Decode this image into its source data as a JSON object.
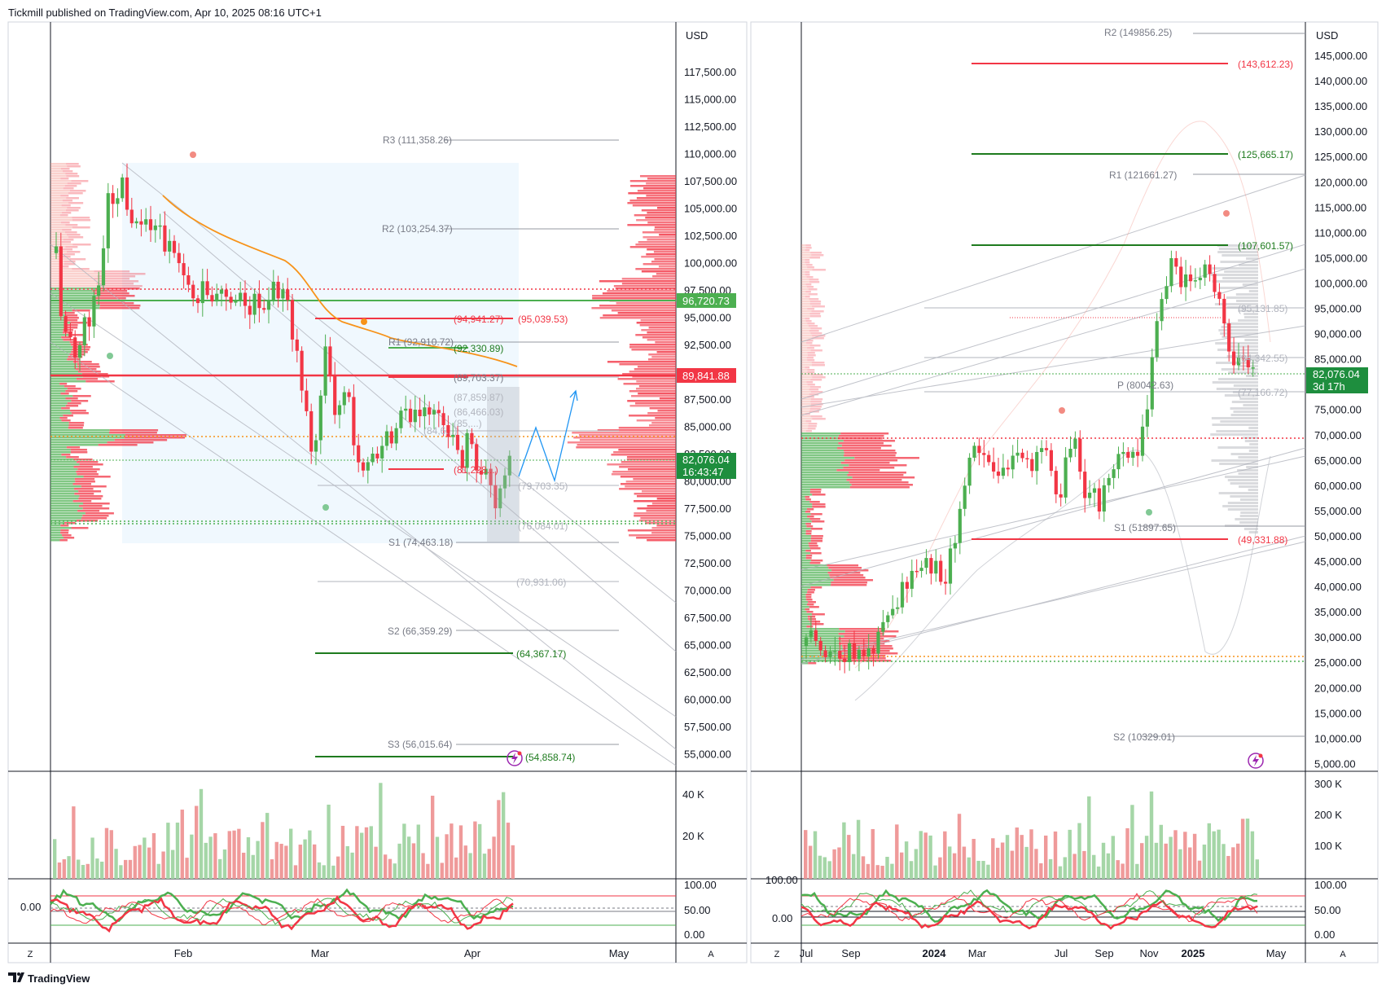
{
  "header": {
    "text": "Tickmill published on TradingView.com, Apr 10, 2025 08:16 UTC+1"
  },
  "footer": {
    "brand": "TradingView"
  },
  "colors": {
    "up": "#4caf50",
    "down": "#f23645",
    "orange": "#f7931a",
    "blue": "#2962ff",
    "grid": "#e0e3eb",
    "axis": "#131722"
  },
  "left_pane": {
    "currency": "USD",
    "price_ticks": [
      "117,500.00",
      "115,000.00",
      "112,500.00",
      "110,000.00",
      "107,500.00",
      "105,000.00",
      "102,500.00",
      "100,000.00",
      "97,500.00",
      "95,000.00",
      "92,500.00",
      "90,000.00",
      "87,500.00",
      "85,000.00",
      "82,500.00",
      "80,000.00",
      "77,500.00",
      "75,000.00",
      "72,500.00",
      "70,000.00",
      "67,500.00",
      "65,000.00",
      "62,500.00",
      "60,000.00",
      "57,500.00",
      "55,000.00"
    ],
    "price_badges": {
      "green_top": "96,720.73",
      "red": "89,841.88",
      "current": "82,076.04",
      "countdown": "16:43:47"
    },
    "pivots": {
      "R3": "R3 (111,358.26)",
      "R2": "R2 (103,254.37)",
      "R1": "R1 (92,910.72)",
      "S1": "S1 (74,463.18)",
      "S2": "S2 (66,359.29)",
      "S3": "S3 (56,015.64)"
    },
    "levels": {
      "red1": "(94,941.27)",
      "red2": "(95,039.53)",
      "green1": "(92,330.89)",
      "l89": "(89,703.37)",
      "l87": "(87,859.87)",
      "l86": "(86,466.03)",
      "l85": "(85,...)",
      "l84": "(84,6...)",
      "l81": "(81,228...)",
      "l79": "(79,703.35)",
      "l76": "(76,084.01)",
      "l70": "(70,931.06)",
      "l64": "(64,367.17)",
      "l54": "(54,858.74)"
    },
    "time_ticks": [
      "Feb",
      "Mar",
      "Apr",
      "May"
    ],
    "volume_ticks": [
      "40 K",
      "20 K"
    ],
    "osc_ticks": [
      "100.00",
      "50.00",
      "0.00"
    ],
    "osc_left_label": "0.00",
    "corner_left": "Z",
    "corner_right": "A"
  },
  "right_pane": {
    "currency": "USD",
    "price_ticks": [
      "145,000.00",
      "140,000.00",
      "135,000.00",
      "130,000.00",
      "125,000.00",
      "120,000.00",
      "115,000.00",
      "110,000.00",
      "105,000.00",
      "100,000.00",
      "95,000.00",
      "90,000.00",
      "85,000.00",
      "80,000.00",
      "75,000.00",
      "70,000.00",
      "65,000.00",
      "60,000.00",
      "55,000.00",
      "50,000.00",
      "45,000.00",
      "40,000.00",
      "35,000.00",
      "30,000.00",
      "25,000.00",
      "20,000.00",
      "15,000.00",
      "10,000.00",
      "5,000.00"
    ],
    "price_badges": {
      "current": "82,076.04",
      "countdown": "3d 17h"
    },
    "pivots": {
      "R2": "R2 (149856.25)",
      "R1": "R1 (121661.27)",
      "P": "P (80042.63)",
      "S1": "S1 (51897.65)",
      "S2": "S2 (10329.01)"
    },
    "levels": {
      "red_top": "(143,612.23)",
      "green_125": "(125,665.17)",
      "green_107": "(107,601.57)",
      "l95": "(95,131.85)",
      "l84": "(84,342.55)",
      "l77": "(77,166.72)",
      "red_49": "(49,331.88)"
    },
    "time_ticks": [
      "Jul",
      "Sep",
      "2024",
      "Mar",
      "Jul",
      "Sep",
      "Nov",
      "2025",
      "May"
    ],
    "volume_ticks": [
      "300 K",
      "200 K",
      "100 K"
    ],
    "osc_ticks": [
      "100.00",
      "50.00",
      "0.00"
    ],
    "osc_left_labels": [
      "100.00",
      "0.00"
    ],
    "corner_left": "Z",
    "corner_right": "A"
  }
}
